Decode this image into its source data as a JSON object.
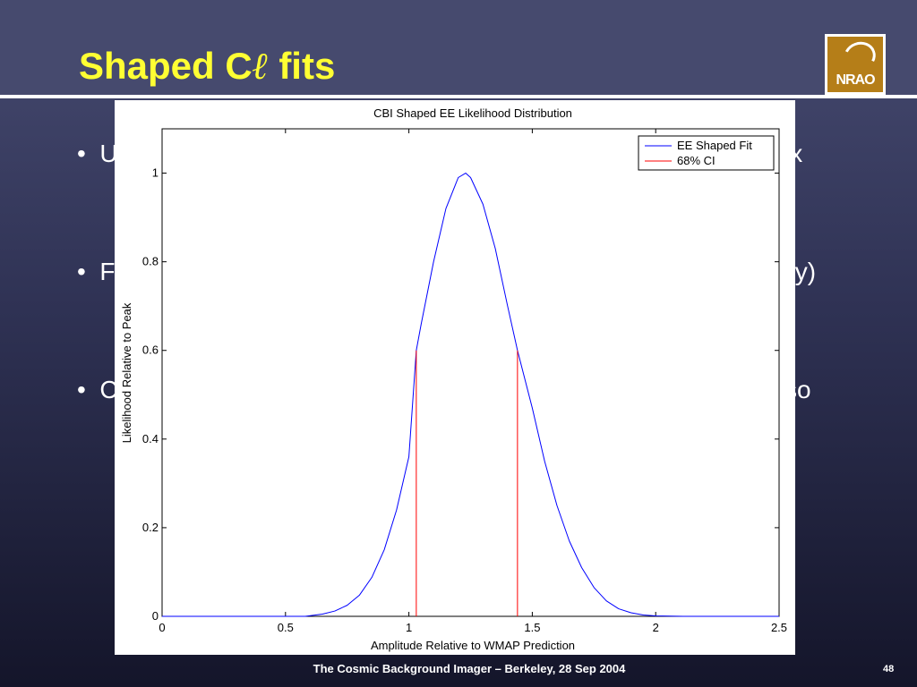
{
  "slide": {
    "title_prefix": "Shaped C",
    "title_symbol": "ℓ",
    "title_suffix": " fits",
    "logo_text": "NRAO",
    "bullets": [
      {
        "marker": "•",
        "visible_start": "U",
        "visible_end": "ix"
      },
      {
        "marker": "•",
        "visible_start": "F",
        "visible_end": "nly)"
      },
      {
        "marker": "•",
        "visible_start": "C",
        "visible_end": "so"
      }
    ],
    "footer": "The Cosmic Background Imager – Berkeley, 28 Sep 2004",
    "page_number": "48"
  },
  "colors": {
    "title": "#ffff33",
    "series_fit": "#0000ff",
    "series_ci": "#ff0000"
  },
  "chart_data": {
    "type": "line",
    "title": "CBI Shaped EE Likelihood Distribution",
    "xlabel": "Amplitude Relative to WMAP Prediction",
    "ylabel": "Likelihood Relative to Peak",
    "xlim": [
      0,
      2.5
    ],
    "ylim": [
      0,
      1.1
    ],
    "xticks": [
      0,
      0.5,
      1,
      1.5,
      2,
      2.5
    ],
    "xtick_labels": [
      "0",
      "0.5",
      "1",
      "1.5",
      "2",
      "2.5"
    ],
    "yticks": [
      0,
      0.2,
      0.4,
      0.6,
      0.8,
      1
    ],
    "ytick_labels": [
      "0",
      "0.2",
      "0.4",
      "0.6",
      "0.8",
      "1"
    ],
    "grid": false,
    "legend_position": "top-right",
    "series": [
      {
        "name": "EE Shaped Fit",
        "color": "#0000ff",
        "x": [
          0,
          0.58,
          0.65,
          0.7,
          0.75,
          0.8,
          0.85,
          0.9,
          0.95,
          1.0,
          1.03,
          1.05,
          1.1,
          1.15,
          1.2,
          1.23,
          1.25,
          1.3,
          1.35,
          1.4,
          1.44,
          1.5,
          1.55,
          1.6,
          1.65,
          1.7,
          1.75,
          1.8,
          1.85,
          1.9,
          1.95,
          2.0,
          2.12,
          2.5
        ],
        "y": [
          0,
          0,
          0.005,
          0.012,
          0.025,
          0.048,
          0.088,
          0.15,
          0.24,
          0.36,
          0.6,
          0.66,
          0.8,
          0.92,
          0.99,
          1.0,
          0.99,
          0.93,
          0.83,
          0.7,
          0.6,
          0.47,
          0.35,
          0.25,
          0.17,
          0.11,
          0.065,
          0.035,
          0.017,
          0.008,
          0.003,
          0.001,
          0,
          0
        ]
      },
      {
        "name": "68% CI",
        "color": "#ff0000",
        "segments": [
          {
            "x": 1.03,
            "y0": 0,
            "y1": 0.6
          },
          {
            "x": 1.44,
            "y0": 0,
            "y1": 0.6
          }
        ]
      }
    ]
  }
}
